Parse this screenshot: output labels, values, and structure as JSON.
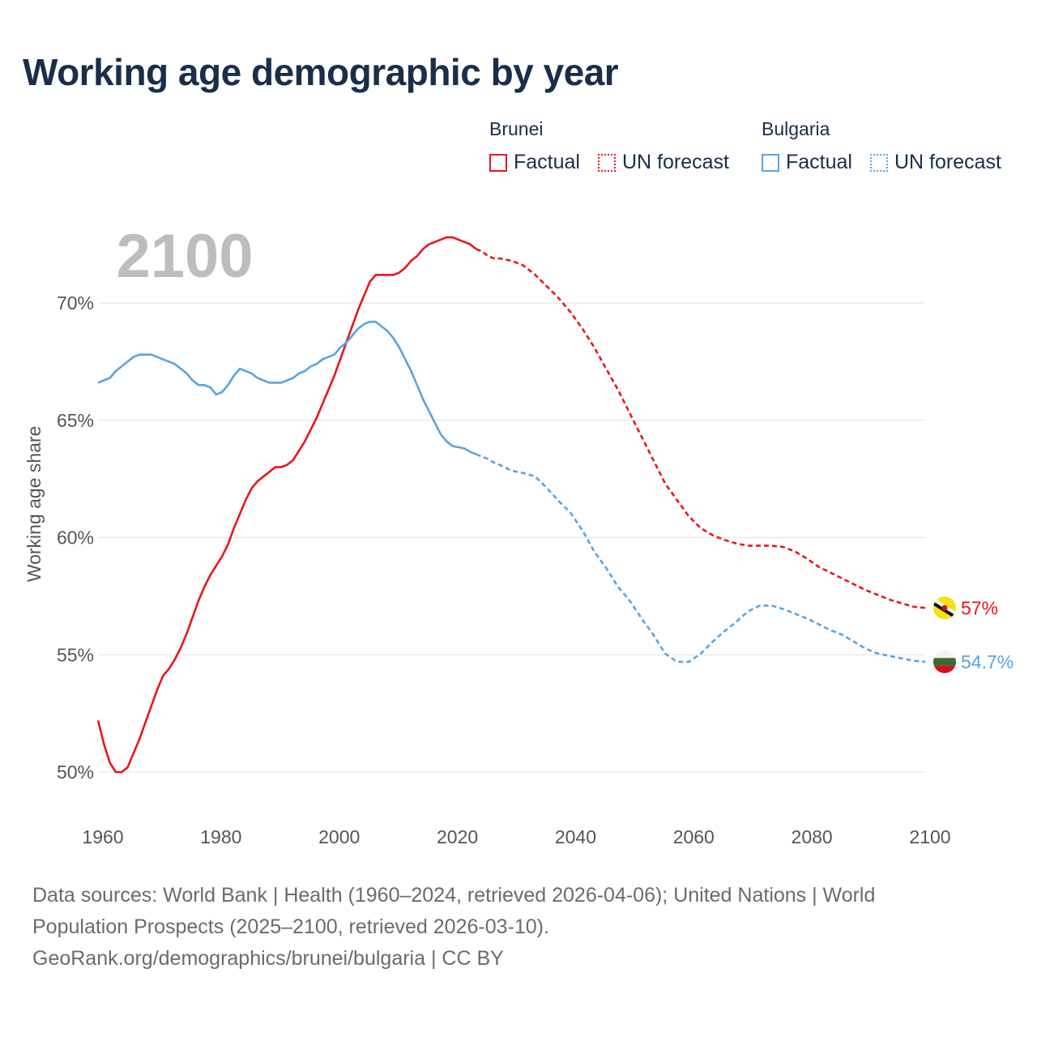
{
  "title": "Working age demographic by year",
  "legend": {
    "brunei": {
      "label": "Brunei",
      "factual": "Factual",
      "forecast": "UN forecast"
    },
    "bulgaria": {
      "label": "Bulgaria",
      "factual": "Factual",
      "forecast": "UN forecast"
    }
  },
  "colors": {
    "brunei": "#e8161b",
    "bulgaria": "#5aa4e0"
  },
  "footer": {
    "line1": "Data sources: World Bank | Health (1960–2024, retrieved 2026-04-06); United Nations | World",
    "line2": "Population Prospects (2025–2100, retrieved 2026-03-10).",
    "line3": "GeoRank.org/demographics/brunei/bulgaria | CC BY"
  },
  "chart_data": {
    "type": "line",
    "title": "Working age demographic by year",
    "current_year_label": "2100",
    "xlabel": "",
    "ylabel": "Working age share",
    "xlim": [
      1960,
      2103
    ],
    "ylim": [
      48.5,
      72.5
    ],
    "x_ticks": [
      1960,
      1980,
      2000,
      2020,
      2040,
      2060,
      2080,
      2100
    ],
    "y_ticks": [
      50,
      55,
      60,
      65,
      70
    ],
    "y_tick_labels": [
      "50%",
      "55%",
      "60%",
      "65%",
      "70%"
    ],
    "forecast_start": 2024,
    "series": [
      {
        "name": "Brunei",
        "end_label": "57%",
        "flag_icon": "brunei-flag-icon",
        "x": [
          1960,
          1961,
          1962,
          1963,
          1964,
          1965,
          1966,
          1967,
          1968,
          1969,
          1970,
          1971,
          1972,
          1973,
          1974,
          1975,
          1976,
          1977,
          1978,
          1979,
          1980,
          1981,
          1982,
          1983,
          1984,
          1985,
          1986,
          1987,
          1988,
          1989,
          1990,
          1991,
          1992,
          1993,
          1994,
          1995,
          1996,
          1997,
          1998,
          1999,
          2000,
          2001,
          2002,
          2003,
          2004,
          2005,
          2006,
          2007,
          2008,
          2009,
          2010,
          2011,
          2012,
          2013,
          2014,
          2015,
          2016,
          2017,
          2018,
          2019,
          2020,
          2021,
          2022,
          2023,
          2024,
          2025,
          2026,
          2027,
          2028,
          2030,
          2032,
          2034,
          2036,
          2038,
          2040,
          2042,
          2044,
          2046,
          2048,
          2050,
          2052,
          2054,
          2056,
          2058,
          2060,
          2062,
          2064,
          2066,
          2068,
          2070,
          2072,
          2074,
          2076,
          2078,
          2080,
          2082,
          2084,
          2086,
          2088,
          2090,
          2092,
          2094,
          2096,
          2098,
          2100
        ],
        "values": [
          52.2,
          51.2,
          50.4,
          50.0,
          50.0,
          50.2,
          50.8,
          51.4,
          52.1,
          52.8,
          53.5,
          54.1,
          54.4,
          54.8,
          55.3,
          55.9,
          56.6,
          57.3,
          57.9,
          58.4,
          58.8,
          59.2,
          59.7,
          60.4,
          61.0,
          61.6,
          62.1,
          62.4,
          62.6,
          62.8,
          63.0,
          63.0,
          63.1,
          63.3,
          63.7,
          64.1,
          64.6,
          65.1,
          65.7,
          66.3,
          66.9,
          67.6,
          68.3,
          69.0,
          69.7,
          70.3,
          70.9,
          71.2,
          71.2,
          71.2,
          71.2,
          71.3,
          71.5,
          71.8,
          72.0,
          72.3,
          72.5,
          72.6,
          72.7,
          72.8,
          72.8,
          72.7,
          72.6,
          72.5,
          72.3,
          72.2,
          72.0,
          71.9,
          71.9,
          71.8,
          71.6,
          71.2,
          70.7,
          70.2,
          69.6,
          68.9,
          68.1,
          67.2,
          66.3,
          65.3,
          64.3,
          63.3,
          62.3,
          61.6,
          60.9,
          60.4,
          60.1,
          59.9,
          59.75,
          59.65,
          59.65,
          59.65,
          59.6,
          59.4,
          59.1,
          58.75,
          58.5,
          58.25,
          58.0,
          57.75,
          57.55,
          57.35,
          57.2,
          57.05,
          57.0
        ]
      },
      {
        "name": "Bulgaria",
        "end_label": "54.7%",
        "flag_icon": "bulgaria-flag-icon",
        "x": [
          1960,
          1961,
          1962,
          1963,
          1964,
          1965,
          1966,
          1967,
          1968,
          1969,
          1970,
          1971,
          1972,
          1973,
          1974,
          1975,
          1976,
          1977,
          1978,
          1979,
          1980,
          1981,
          1982,
          1983,
          1984,
          1985,
          1986,
          1987,
          1988,
          1989,
          1990,
          1991,
          1992,
          1993,
          1994,
          1995,
          1996,
          1997,
          1998,
          1999,
          2000,
          2001,
          2002,
          2003,
          2004,
          2005,
          2006,
          2007,
          2008,
          2009,
          2010,
          2011,
          2012,
          2013,
          2014,
          2015,
          2016,
          2017,
          2018,
          2019,
          2020,
          2021,
          2022,
          2023,
          2024,
          2025,
          2026,
          2027,
          2028,
          2030,
          2032,
          2034,
          2036,
          2038,
          2040,
          2042,
          2044,
          2046,
          2048,
          2050,
          2052,
          2054,
          2056,
          2058,
          2060,
          2062,
          2064,
          2066,
          2068,
          2070,
          2072,
          2074,
          2076,
          2078,
          2080,
          2082,
          2084,
          2086,
          2088,
          2090,
          2092,
          2094,
          2096,
          2098,
          2100
        ],
        "values": [
          66.6,
          66.7,
          66.8,
          67.1,
          67.3,
          67.5,
          67.7,
          67.8,
          67.8,
          67.8,
          67.7,
          67.6,
          67.5,
          67.4,
          67.2,
          67.0,
          66.7,
          66.5,
          66.5,
          66.4,
          66.1,
          66.2,
          66.5,
          66.9,
          67.2,
          67.1,
          67.0,
          66.8,
          66.7,
          66.6,
          66.6,
          66.6,
          66.7,
          66.8,
          67.0,
          67.1,
          67.3,
          67.4,
          67.6,
          67.7,
          67.8,
          68.1,
          68.3,
          68.6,
          68.9,
          69.1,
          69.2,
          69.2,
          69.0,
          68.8,
          68.5,
          68.1,
          67.6,
          67.1,
          66.5,
          65.9,
          65.4,
          64.9,
          64.4,
          64.1,
          63.9,
          63.85,
          63.8,
          63.65,
          63.55,
          63.45,
          63.35,
          63.2,
          63.1,
          62.85,
          62.75,
          62.6,
          62.1,
          61.55,
          61.05,
          60.3,
          59.4,
          58.7,
          57.9,
          57.3,
          56.55,
          55.85,
          55.05,
          54.7,
          54.7,
          55.05,
          55.55,
          56.0,
          56.4,
          56.85,
          57.1,
          57.1,
          56.95,
          56.75,
          56.55,
          56.3,
          56.05,
          55.85,
          55.55,
          55.25,
          55.05,
          54.95,
          54.85,
          54.75,
          54.7
        ]
      }
    ]
  }
}
